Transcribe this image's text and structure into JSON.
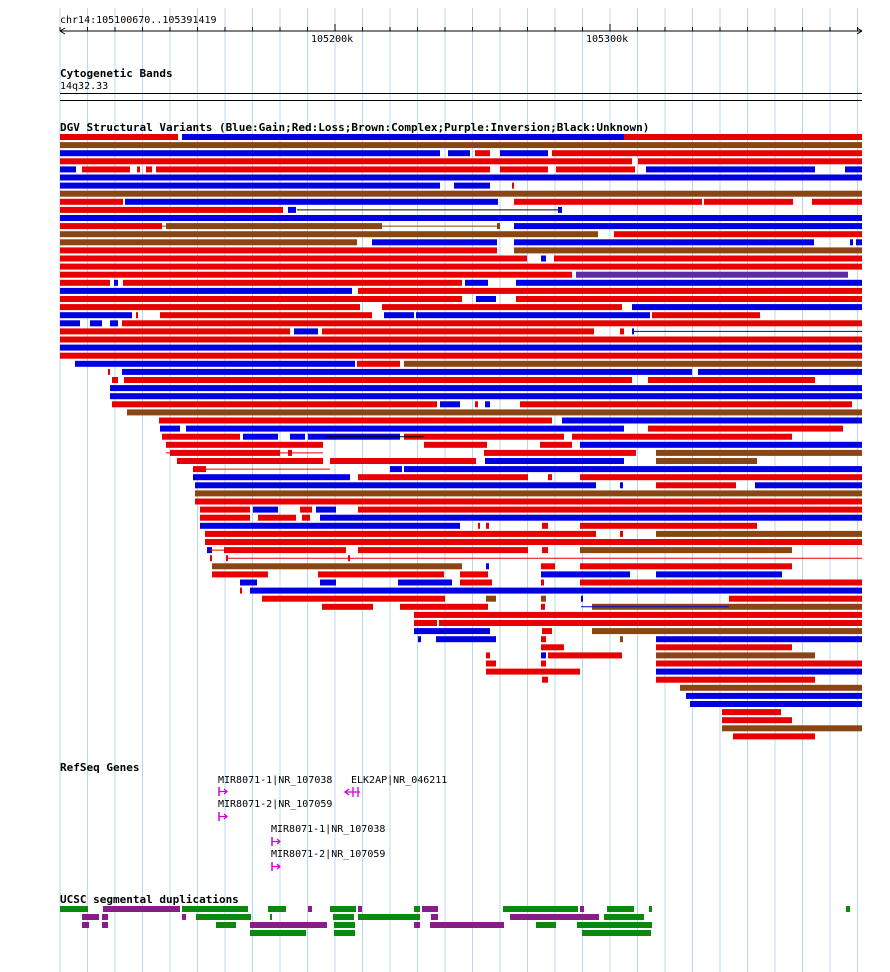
{
  "ruler": {
    "region": "chr14:105100670..105391419",
    "ticks": [
      "105200k",
      "105300k"
    ]
  },
  "cytoband": {
    "title": "Cytogenetic Bands",
    "band": "14q32.33"
  },
  "dgv": {
    "title": "DGV Structural Variants (Blue:Gain;Red:Loss;Brown:Complex;Purple:Inversion;Black:Unknown)",
    "colors": {
      "blue": "#0000e0",
      "red": "#e80000",
      "brown": "#8b4513",
      "purple": "#5a2c9e",
      "black": "#000000"
    }
  },
  "refseq": {
    "title": "RefSeq Genes",
    "genes": [
      {
        "label": "MIR8071-1|NR_107038",
        "strand": "+"
      },
      {
        "label": "ELK2AP|NR_046211",
        "strand": "-"
      },
      {
        "label": "MIR8071-2|NR_107059",
        "strand": "+"
      },
      {
        "label": "MIR8071-1|NR_107038",
        "strand": "+"
      },
      {
        "label": "MIR8071-2|NR_107059",
        "strand": "+"
      }
    ]
  },
  "segdup": {
    "title": "UCSC segmental duplications",
    "colors": {
      "green": "#0a8a0a",
      "purple": "#8b1a8b"
    }
  }
}
